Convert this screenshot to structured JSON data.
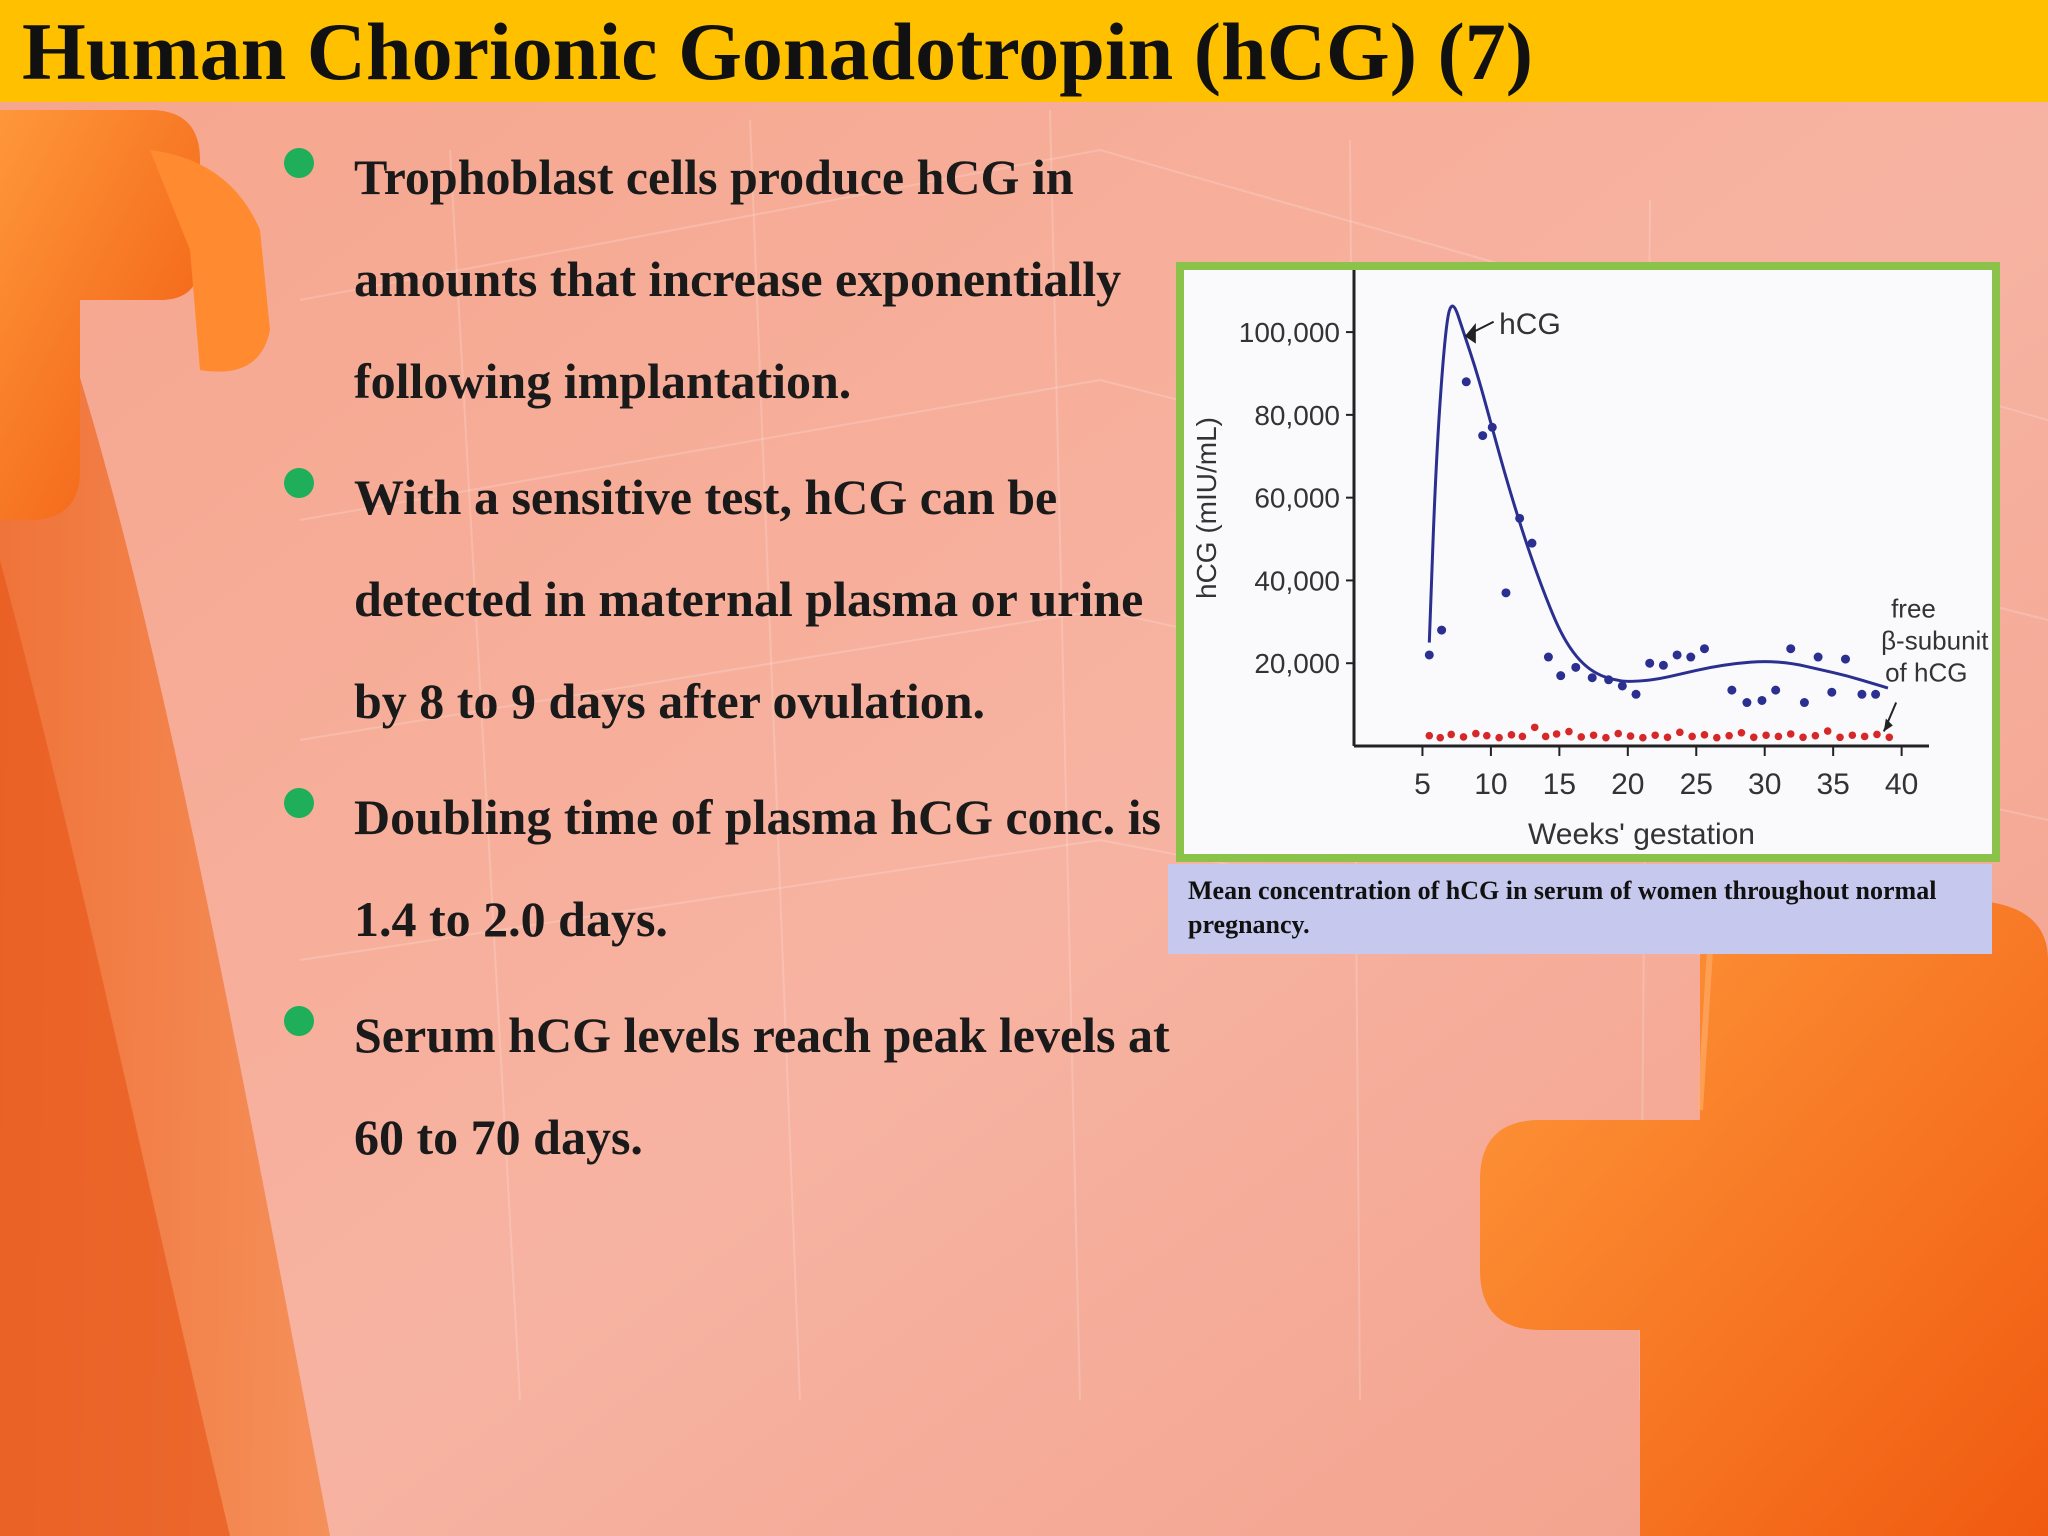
{
  "slide": {
    "title": "Human Chorionic Gonadotropin (hCG) (7)",
    "bullets": [
      "Trophoblast cells produce hCG in amounts that increase exponentially following implantation.",
      "With a sensitive test, hCG can be detected in maternal plasma or urine by 8 to 9 days after ovulation.",
      "Doubling time of plasma hCG conc. is 1.4 to 2.0 days.",
      "Serum hCG levels reach peak levels at 60 to 70 days."
    ],
    "figure_caption": "Mean concentration of hCG in serum of women throughout normal pregnancy."
  },
  "colors": {
    "title_bar": "#ffc000",
    "bullet": "#1fae5a",
    "frame": "#8bc34a",
    "caption_bg": "#c6c8ee",
    "hcg_series": "#2b2f8f",
    "beta_series": "#d62828"
  },
  "chart_data": {
    "type": "scatter",
    "xlabel": "Weeks' gestation",
    "ylabel": "hCG (mIU/mL)",
    "xlim": [
      0,
      42
    ],
    "ylim": [
      0,
      115000
    ],
    "x_ticks": [
      5,
      10,
      15,
      20,
      25,
      30,
      35,
      40
    ],
    "y_ticks": [
      20000,
      40000,
      60000,
      80000,
      100000
    ],
    "y_tick_labels": [
      "20,000",
      "40,000",
      "60,000",
      "80,000",
      "100,000"
    ],
    "annotations": [
      {
        "text": "hCG",
        "target": "curve peak"
      },
      {
        "text_lines": [
          "free",
          "β-subunit",
          "of hCG"
        ],
        "target": "lower series end"
      }
    ],
    "series": [
      {
        "name": "hCG",
        "points": [
          [
            5.5,
            22000
          ],
          [
            6.4,
            28000
          ],
          [
            8.2,
            88000
          ],
          [
            9.4,
            75000
          ],
          [
            10.1,
            77000
          ],
          [
            11.1,
            37000
          ],
          [
            12.1,
            55000
          ],
          [
            13,
            49000
          ],
          [
            14.2,
            21500
          ],
          [
            15.1,
            17000
          ],
          [
            16.2,
            19000
          ],
          [
            17.4,
            16500
          ],
          [
            18.6,
            16000
          ],
          [
            19.6,
            14500
          ],
          [
            20.6,
            12500
          ],
          [
            21.6,
            20000
          ],
          [
            22.6,
            19500
          ],
          [
            23.6,
            22000
          ],
          [
            24.6,
            21500
          ],
          [
            25.6,
            23500
          ],
          [
            27.6,
            13500
          ],
          [
            28.7,
            10500
          ],
          [
            29.8,
            11000
          ],
          [
            30.8,
            13500
          ],
          [
            31.9,
            23500
          ],
          [
            32.9,
            10500
          ],
          [
            33.9,
            21500
          ],
          [
            34.9,
            13000
          ],
          [
            35.9,
            21000
          ],
          [
            37.1,
            12500
          ],
          [
            38.1,
            12500
          ]
        ],
        "curve": [
          [
            5.5,
            25000
          ],
          [
            6,
            70000
          ],
          [
            6.7,
            102000
          ],
          [
            7.2,
            108000
          ],
          [
            8,
            100000
          ],
          [
            9,
            90000
          ],
          [
            10,
            78000
          ],
          [
            11,
            66000
          ],
          [
            12,
            55000
          ],
          [
            13,
            45000
          ],
          [
            14,
            36000
          ],
          [
            15,
            28000
          ],
          [
            16,
            22500
          ],
          [
            17,
            19000
          ],
          [
            18,
            17000
          ],
          [
            19,
            16000
          ],
          [
            20,
            15500
          ],
          [
            22,
            16000
          ],
          [
            24,
            17500
          ],
          [
            26,
            19000
          ],
          [
            28,
            20000
          ],
          [
            30,
            20500
          ],
          [
            32,
            20000
          ],
          [
            34,
            18500
          ],
          [
            36,
            17000
          ],
          [
            38,
            15000
          ],
          [
            39,
            14000
          ]
        ]
      },
      {
        "name": "free β-subunit of hCG",
        "points": [
          [
            5.5,
            2500
          ],
          [
            6.3,
            2000
          ],
          [
            7.1,
            2800
          ],
          [
            8,
            2200
          ],
          [
            8.9,
            3000
          ],
          [
            9.7,
            2500
          ],
          [
            10.6,
            2000
          ],
          [
            11.5,
            2700
          ],
          [
            12.3,
            2300
          ],
          [
            13.2,
            4500
          ],
          [
            14,
            2300
          ],
          [
            14.8,
            2900
          ],
          [
            15.7,
            3500
          ],
          [
            16.6,
            2200
          ],
          [
            17.5,
            2600
          ],
          [
            18.4,
            2000
          ],
          [
            19.3,
            3000
          ],
          [
            20.2,
            2400
          ],
          [
            21.1,
            2000
          ],
          [
            22,
            2600
          ],
          [
            22.9,
            2100
          ],
          [
            23.8,
            3300
          ],
          [
            24.7,
            2300
          ],
          [
            25.6,
            2700
          ],
          [
            26.5,
            2000
          ],
          [
            27.4,
            2500
          ],
          [
            28.3,
            3200
          ],
          [
            29.2,
            2100
          ],
          [
            30.1,
            2600
          ],
          [
            31,
            2300
          ],
          [
            31.9,
            2900
          ],
          [
            32.8,
            2100
          ],
          [
            33.7,
            2500
          ],
          [
            34.6,
            3600
          ],
          [
            35.5,
            2100
          ],
          [
            36.4,
            2600
          ],
          [
            37.3,
            2300
          ],
          [
            38.2,
            2800
          ],
          [
            39.1,
            2100
          ]
        ]
      }
    ]
  }
}
